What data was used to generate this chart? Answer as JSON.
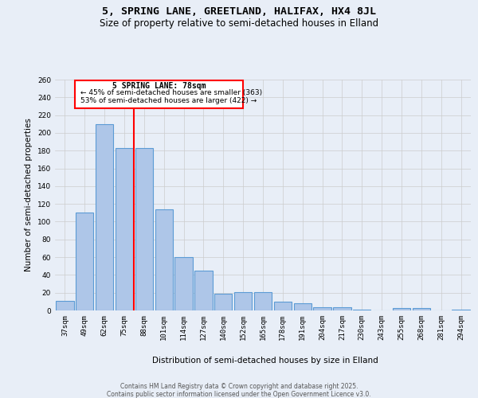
{
  "title": "5, SPRING LANE, GREETLAND, HALIFAX, HX4 8JL",
  "subtitle": "Size of property relative to semi-detached houses in Elland",
  "xlabel": "Distribution of semi-detached houses by size in Elland",
  "ylabel": "Number of semi-detached properties",
  "categories": [
    "37sqm",
    "49sqm",
    "62sqm",
    "75sqm",
    "88sqm",
    "101sqm",
    "114sqm",
    "127sqm",
    "140sqm",
    "152sqm",
    "165sqm",
    "178sqm",
    "191sqm",
    "204sqm",
    "217sqm",
    "230sqm",
    "243sqm",
    "255sqm",
    "268sqm",
    "281sqm",
    "294sqm"
  ],
  "values": [
    11,
    110,
    210,
    183,
    183,
    114,
    60,
    45,
    19,
    21,
    21,
    10,
    8,
    4,
    4,
    1,
    0,
    3,
    3,
    0,
    1
  ],
  "bar_color": "#aec6e8",
  "bar_edge_color": "#5b9bd5",
  "bar_linewidth": 0.8,
  "property_label": "5 SPRING LANE: 78sqm",
  "vline_color": "red",
  "vline_x_index": 3.5,
  "annotation_smaller_pct": "45%",
  "annotation_smaller_n": 363,
  "annotation_larger_pct": "53%",
  "annotation_larger_n": 422,
  "box_color": "red",
  "ylim": [
    0,
    260
  ],
  "yticks": [
    0,
    20,
    40,
    60,
    80,
    100,
    120,
    140,
    160,
    180,
    200,
    220,
    240,
    260
  ],
  "grid_color": "#cccccc",
  "background_color": "#e8eef7",
  "footer_line1": "Contains HM Land Registry data © Crown copyright and database right 2025.",
  "footer_line2": "Contains public sector information licensed under the Open Government Licence v3.0.",
  "title_fontsize": 9.5,
  "subtitle_fontsize": 8.5,
  "axis_label_fontsize": 7.5,
  "tick_fontsize": 6.5,
  "footer_fontsize": 5.5,
  "annotation_fontsize": 7.0
}
